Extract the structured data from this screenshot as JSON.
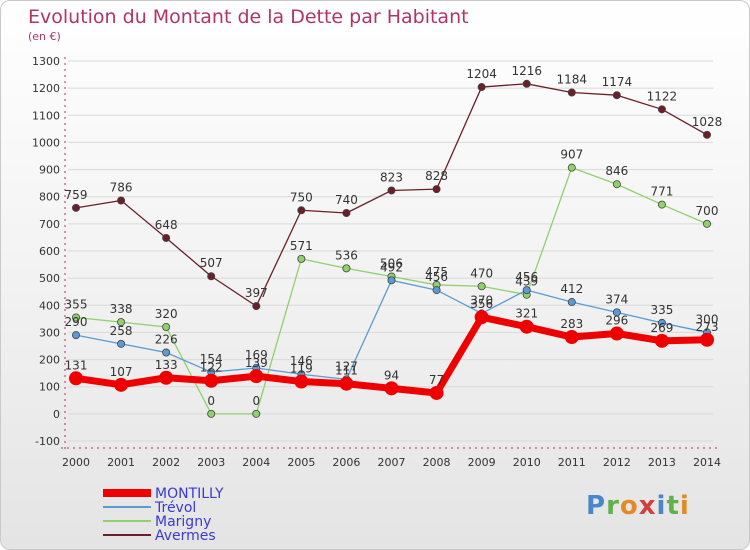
{
  "chart_data": {
    "type": "line",
    "title": "Evolution du Montant de la Dette par Habitant",
    "unit_label": "(en €)",
    "xlabel": "",
    "ylabel": "",
    "x": [
      "2000",
      "2001",
      "2002",
      "2003",
      "2004",
      "2005",
      "2006",
      "2007",
      "2008",
      "2009",
      "2010",
      "2011",
      "2012",
      "2013",
      "2014"
    ],
    "ylim": [
      -100,
      1300
    ],
    "yticks": [
      "-100",
      "0",
      "100",
      "200",
      "300",
      "400",
      "500",
      "600",
      "700",
      "800",
      "900",
      "1000",
      "1100",
      "1200",
      "1300"
    ],
    "grid": true,
    "legend_position": "bottom-left",
    "series": [
      {
        "name": "Avermes",
        "color": "#6b1f2a",
        "values": [
          759,
          786,
          648,
          507,
          397,
          750,
          740,
          823,
          828,
          1204,
          1216,
          1184,
          1174,
          1122,
          1028
        ],
        "labels": [
          "759",
          "786",
          "648",
          "507",
          "397",
          "750",
          "740",
          "823",
          "828",
          "1204",
          "1216",
          "1184",
          "1174",
          "1122",
          "1028"
        ]
      },
      {
        "name": "Marigny",
        "color": "#8fd16a",
        "values": [
          355,
          338,
          320,
          0,
          0,
          571,
          536,
          506,
          475,
          470,
          439,
          907,
          846,
          771,
          700
        ],
        "labels": [
          "355",
          "338",
          "320",
          "0",
          "0",
          "571",
          "536",
          "506",
          "475",
          "470",
          "439",
          "907",
          "846",
          "771",
          "700"
        ]
      },
      {
        "name": "Trévol",
        "color": "#5b9bd5",
        "values": [
          290,
          258,
          226,
          154,
          169,
          146,
          127,
          492,
          456,
          370,
          456,
          412,
          374,
          335,
          300
        ],
        "labels": [
          "290",
          "258",
          "226",
          "154",
          "169",
          "146",
          "127",
          "492",
          "456",
          "370",
          "456",
          "412",
          "374",
          "335",
          "300"
        ]
      },
      {
        "name": "MONTILLY",
        "color": "#ee0000",
        "values": [
          131,
          107,
          133,
          122,
          139,
          119,
          111,
          94,
          77,
          356,
          321,
          283,
          296,
          269,
          273
        ],
        "labels": [
          "131",
          "107",
          "133",
          "122",
          "139",
          "119",
          "111",
          "94",
          "77",
          "356",
          "321",
          "283",
          "296",
          "269",
          "273"
        ]
      }
    ]
  },
  "legend": [
    {
      "name": "MONTILLY",
      "color": "#ee0000",
      "style": "thick"
    },
    {
      "name": "Trévol",
      "color": "#5b9bd5",
      "style": "thin"
    },
    {
      "name": "Marigny",
      "color": "#8fd16a",
      "style": "thin"
    },
    {
      "name": "Avermes",
      "color": "#6b1f2a",
      "style": "thin"
    }
  ],
  "legend_text_color": "#3a3ad6",
  "title_color": "#b0346b",
  "logo": {
    "name": "proxiti-logo",
    "letters": [
      "P",
      "r",
      "o",
      "x",
      "i",
      "t",
      "i"
    ]
  }
}
